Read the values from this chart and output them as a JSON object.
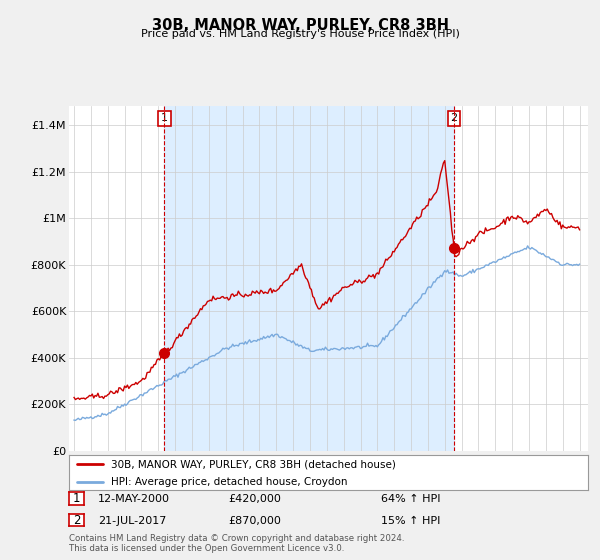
{
  "title": "30B, MANOR WAY, PURLEY, CR8 3BH",
  "subtitle": "Price paid vs. HM Land Registry's House Price Index (HPI)",
  "ylabel_ticks": [
    "£0",
    "£200K",
    "£400K",
    "£600K",
    "£800K",
    "£1M",
    "£1.2M",
    "£1.4M"
  ],
  "ytick_values": [
    0,
    200000,
    400000,
    600000,
    800000,
    1000000,
    1200000,
    1400000
  ],
  "ylim": [
    0,
    1480000
  ],
  "xlim_start": 1994.7,
  "xlim_end": 2025.5,
  "sale1_date": 2000.36,
  "sale1_price": 420000,
  "sale2_date": 2017.55,
  "sale2_price": 870000,
  "legend_line1": "30B, MANOR WAY, PURLEY, CR8 3BH (detached house)",
  "legend_line2": "HPI: Average price, detached house, Croydon",
  "label1_date": "12-MAY-2000",
  "label1_price": "£420,000",
  "label1_pct": "64% ↑ HPI",
  "label2_date": "21-JUL-2017",
  "label2_price": "£870,000",
  "label2_pct": "15% ↑ HPI",
  "footnote": "Contains HM Land Registry data © Crown copyright and database right 2024.\nThis data is licensed under the Open Government Licence v3.0.",
  "line_color_red": "#cc0000",
  "line_color_blue": "#7aaadd",
  "shade_color": "#ddeeff",
  "bg_color": "#f0f0f0",
  "plot_bg_color": "#ffffff"
}
